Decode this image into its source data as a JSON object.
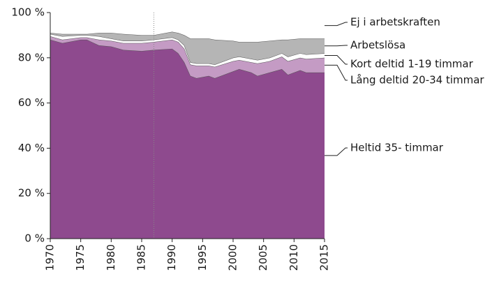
{
  "chart_data": {
    "type": "stacked_area",
    "x": [
      1970,
      1972,
      1975,
      1976,
      1978,
      1980,
      1982,
      1985,
      1987,
      1990,
      1991,
      1992,
      1993,
      1994,
      1996,
      1997,
      2000,
      2001,
      2003,
      2004,
      2006,
      2008,
      2009,
      2011,
      2012,
      2015
    ],
    "series": [
      {
        "name": "Heltid 35- timmar",
        "color": "#8e4a8e",
        "values": [
          88,
          86.5,
          88,
          88,
          85.5,
          85,
          83.5,
          83,
          83.5,
          84,
          82,
          78,
          72,
          71,
          72,
          71,
          74,
          75,
          73.5,
          72,
          73.5,
          75,
          72.5,
          74.5,
          73.5,
          73.5
        ]
      },
      {
        "name": "Lång deltid 20-34 timmar",
        "color": "#c49bc4",
        "values": [
          1.5,
          1.5,
          1,
          1,
          2.5,
          2.5,
          3,
          3.5,
          3.5,
          4,
          5,
          6,
          5,
          5.5,
          4.5,
          5,
          4.5,
          4,
          4.5,
          5.5,
          5,
          5.5,
          6,
          5.5,
          6,
          6.5
        ]
      },
      {
        "name": "Kort deltid 1-19 timmar",
        "color": "#ffffff",
        "values": [
          1,
          1.5,
          1,
          1,
          1.5,
          1,
          1,
          1,
          1,
          1,
          1,
          1.5,
          1,
          1,
          1,
          1,
          1.5,
          1.5,
          1.5,
          1.5,
          1.5,
          1.5,
          2,
          2,
          2,
          2
        ]
      },
      {
        "name": "Arbetslösa",
        "color": "#b5b5b5",
        "values": [
          0.5,
          1,
          0.5,
          0.5,
          1.5,
          2.5,
          3,
          2.5,
          2,
          2.5,
          3,
          4.5,
          10.5,
          11,
          11,
          11,
          7.5,
          6.5,
          7.5,
          8,
          7.5,
          6,
          7.5,
          6.5,
          7,
          6.5
        ]
      },
      {
        "name": "Ej i arbetskraften",
        "color": "#ffffff",
        "values": [
          9,
          9.5,
          9.5,
          9.5,
          9,
          9,
          9.5,
          10,
          10,
          8.5,
          9,
          10,
          11.5,
          11.5,
          11.5,
          12,
          12.5,
          13,
          13,
          13,
          12.5,
          12,
          12,
          11.5,
          11.5,
          11.5
        ]
      }
    ],
    "xlim": [
      1970,
      2015
    ],
    "xticks": [
      1970,
      1975,
      1980,
      1985,
      1990,
      1995,
      2000,
      2005,
      2010,
      2015
    ],
    "ylim": [
      0,
      100
    ],
    "yticks": [
      {
        "value": 0,
        "label": "0 %"
      },
      {
        "value": 20,
        "label": "20 %"
      },
      {
        "value": 40,
        "label": "40 %"
      },
      {
        "value": 60,
        "label": "60 %"
      },
      {
        "value": 80,
        "label": "80 %"
      },
      {
        "value": 100,
        "label": "100 %"
      }
    ],
    "vline": 1987
  }
}
